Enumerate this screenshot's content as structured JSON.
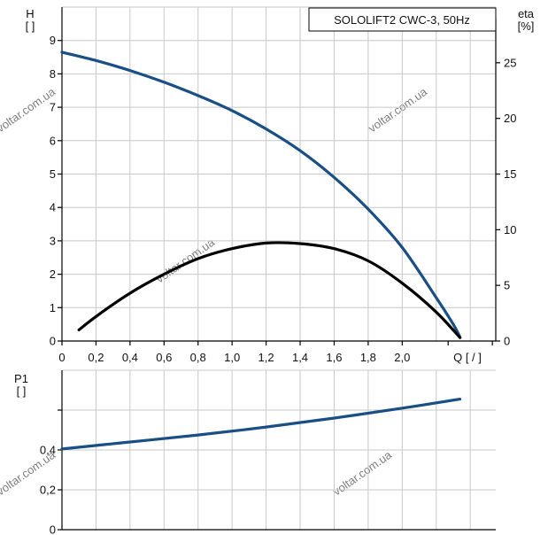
{
  "chart_data": [
    {
      "type": "line",
      "title": "SOLOLIFT2 CWC-3, 50Hz",
      "xlabel": "Q [ / ]",
      "ylabel": "H\n[ ]",
      "y2label": "eta\n[%]",
      "xlim": [
        0,
        2.55
      ],
      "ylim": [
        0,
        10
      ],
      "y2lim": [
        0,
        30
      ],
      "x_ticks": [
        "0",
        "0,2",
        "0,4",
        "0,6",
        "0,8",
        "1,0",
        "1,2",
        "1,4",
        "1,6",
        "1,8",
        "2,0"
      ],
      "y_ticks": [
        "0",
        "1",
        "2",
        "3",
        "4",
        "5",
        "6",
        "7",
        "8",
        "9"
      ],
      "y2_ticks": [
        "0",
        "5",
        "10",
        "15",
        "20",
        "25"
      ],
      "grid": true,
      "series": [
        {
          "name": "H",
          "axis": "left",
          "color": "#1a4f86",
          "x": [
            0.0,
            0.2,
            0.4,
            0.6,
            0.8,
            1.0,
            1.2,
            1.4,
            1.6,
            1.8,
            2.0,
            2.2,
            2.3,
            2.34
          ],
          "y": [
            8.65,
            8.4,
            8.1,
            7.75,
            7.35,
            6.9,
            6.35,
            5.7,
            4.9,
            3.95,
            2.8,
            1.3,
            0.5,
            0.12
          ]
        },
        {
          "name": "eta",
          "axis": "right",
          "color": "#000000",
          "x": [
            0.1,
            0.2,
            0.4,
            0.6,
            0.8,
            1.0,
            1.2,
            1.4,
            1.6,
            1.8,
            2.0,
            2.2,
            2.34
          ],
          "y": [
            1.0,
            2.2,
            4.3,
            6.0,
            7.4,
            8.3,
            8.8,
            8.75,
            8.3,
            7.2,
            5.2,
            2.6,
            0.3
          ]
        }
      ]
    },
    {
      "type": "line",
      "ylabel": "P1\n[ ]",
      "xlim": [
        0,
        2.55
      ],
      "ylim": [
        0,
        0.8
      ],
      "y_ticks": [
        "0",
        "0,2",
        "0,4"
      ],
      "grid": true,
      "series": [
        {
          "name": "P1",
          "color": "#1a4f86",
          "x": [
            0.0,
            0.4,
            0.8,
            1.2,
            1.6,
            2.0,
            2.34
          ],
          "y": [
            0.405,
            0.44,
            0.475,
            0.515,
            0.56,
            0.61,
            0.655
          ]
        }
      ]
    }
  ],
  "watermark": "voltar.com.ua"
}
